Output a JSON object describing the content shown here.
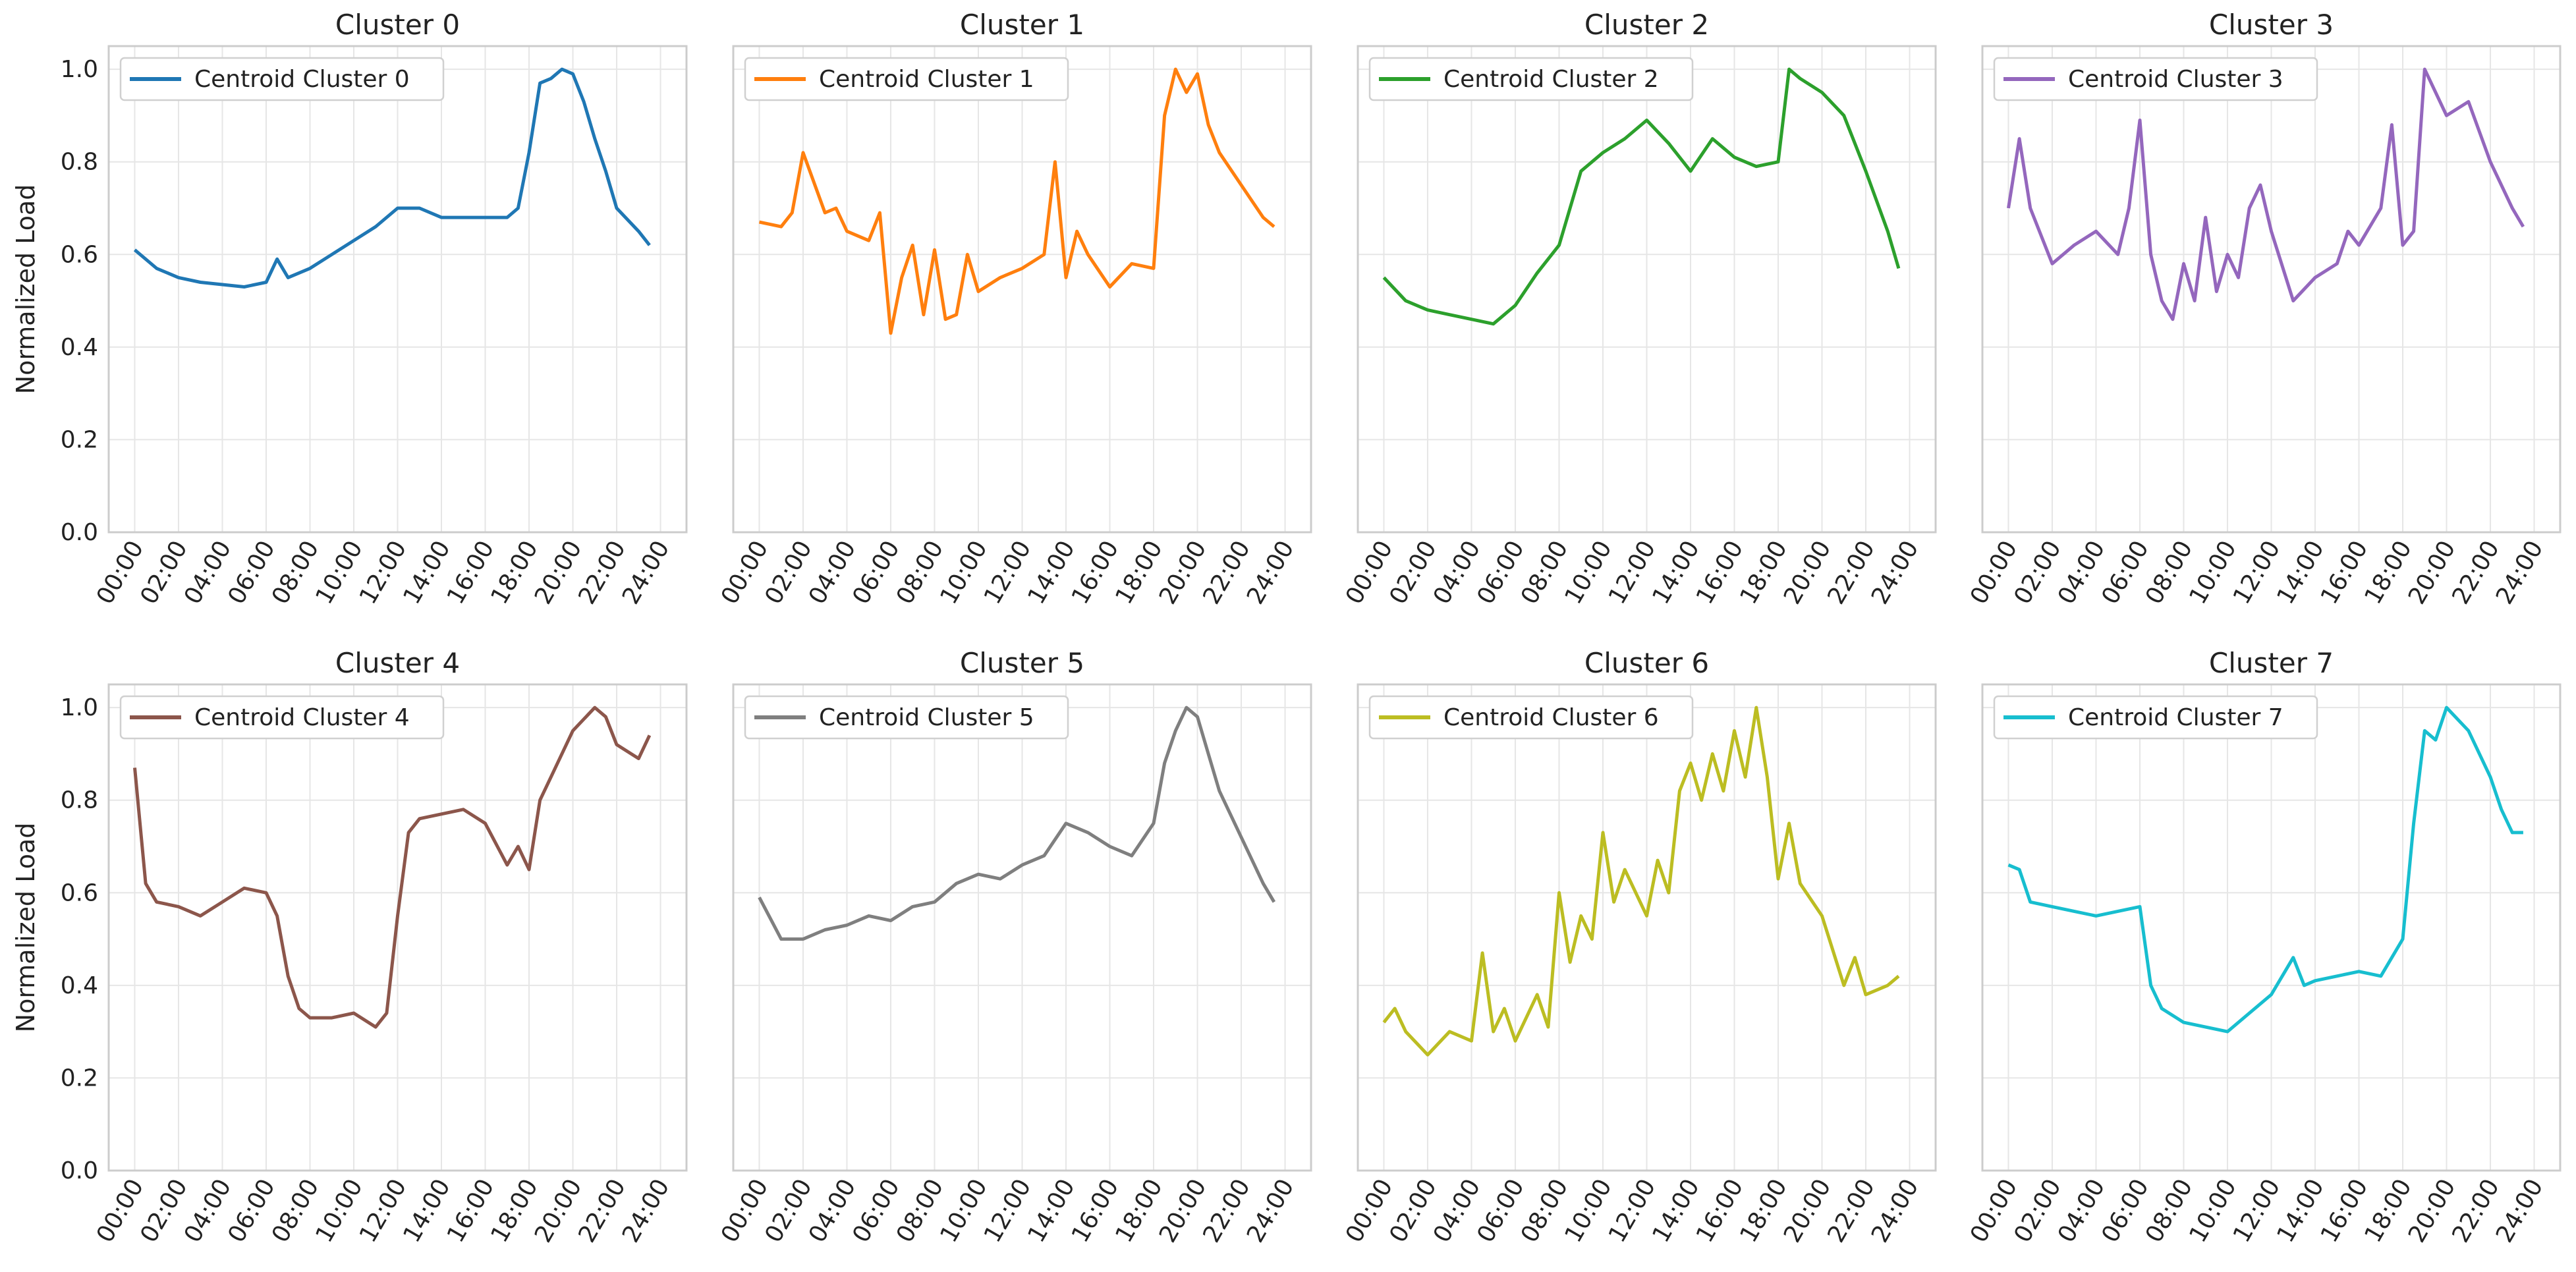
{
  "chart_data": [
    {
      "type": "line",
      "title": "Cluster 0",
      "legend": "Centroid Cluster 0",
      "color": "#1f77b4",
      "ylabel": "Normalized Load",
      "ylim": [
        0,
        1.05
      ],
      "x": [
        "00:00",
        "01:00",
        "02:00",
        "03:00",
        "04:00",
        "05:00",
        "06:00",
        "06:30",
        "07:00",
        "08:00",
        "09:00",
        "10:00",
        "11:00",
        "12:00",
        "13:00",
        "14:00",
        "15:00",
        "16:00",
        "17:00",
        "17:30",
        "18:00",
        "18:30",
        "19:00",
        "19:30",
        "20:00",
        "20:30",
        "21:00",
        "21:30",
        "22:00",
        "23:00",
        "23:30"
      ],
      "y": [
        0.61,
        0.57,
        0.55,
        0.54,
        0.535,
        0.53,
        0.54,
        0.59,
        0.55,
        0.57,
        0.6,
        0.63,
        0.66,
        0.7,
        0.7,
        0.68,
        0.68,
        0.68,
        0.68,
        0.7,
        0.82,
        0.97,
        0.98,
        1.0,
        0.99,
        0.93,
        0.85,
        0.78,
        0.7,
        0.65,
        0.62
      ]
    },
    {
      "type": "line",
      "title": "Cluster 1",
      "legend": "Centroid Cluster 1",
      "color": "#ff7f0e",
      "ylim": [
        0,
        1.05
      ],
      "x": [
        "00:00",
        "01:00",
        "01:30",
        "02:00",
        "03:00",
        "03:30",
        "04:00",
        "05:00",
        "05:30",
        "06:00",
        "06:30",
        "07:00",
        "07:30",
        "08:00",
        "08:30",
        "09:00",
        "09:30",
        "10:00",
        "11:00",
        "12:00",
        "13:00",
        "13:30",
        "14:00",
        "14:30",
        "15:00",
        "16:00",
        "17:00",
        "18:00",
        "18:30",
        "19:00",
        "19:30",
        "20:00",
        "20:30",
        "21:00",
        "22:00",
        "23:00",
        "23:30"
      ],
      "y": [
        0.67,
        0.66,
        0.69,
        0.82,
        0.69,
        0.7,
        0.65,
        0.63,
        0.69,
        0.43,
        0.55,
        0.62,
        0.47,
        0.61,
        0.46,
        0.47,
        0.6,
        0.52,
        0.55,
        0.57,
        0.6,
        0.8,
        0.55,
        0.65,
        0.6,
        0.53,
        0.58,
        0.57,
        0.9,
        1.0,
        0.95,
        0.99,
        0.88,
        0.82,
        0.75,
        0.68,
        0.66
      ]
    },
    {
      "type": "line",
      "title": "Cluster 2",
      "legend": "Centroid Cluster 2",
      "color": "#2ca02c",
      "ylim": [
        0,
        1.05
      ],
      "x": [
        "00:00",
        "01:00",
        "02:00",
        "03:00",
        "04:00",
        "05:00",
        "06:00",
        "07:00",
        "08:00",
        "09:00",
        "10:00",
        "11:00",
        "12:00",
        "13:00",
        "14:00",
        "15:00",
        "16:00",
        "17:00",
        "18:00",
        "18:30",
        "19:00",
        "20:00",
        "21:00",
        "22:00",
        "23:00",
        "23:30"
      ],
      "y": [
        0.55,
        0.5,
        0.48,
        0.47,
        0.46,
        0.45,
        0.49,
        0.56,
        0.62,
        0.78,
        0.82,
        0.85,
        0.89,
        0.84,
        0.78,
        0.85,
        0.81,
        0.79,
        0.8,
        1.0,
        0.98,
        0.95,
        0.9,
        0.78,
        0.65,
        0.57
      ]
    },
    {
      "type": "line",
      "title": "Cluster 3",
      "legend": "Centroid Cluster 3",
      "color": "#9467bd",
      "ylim": [
        0,
        1.05
      ],
      "x": [
        "00:00",
        "00:30",
        "01:00",
        "02:00",
        "03:00",
        "04:00",
        "05:00",
        "05:30",
        "06:00",
        "06:30",
        "07:00",
        "07:30",
        "08:00",
        "08:30",
        "09:00",
        "09:30",
        "10:00",
        "10:30",
        "11:00",
        "11:30",
        "12:00",
        "13:00",
        "14:00",
        "15:00",
        "15:30",
        "16:00",
        "17:00",
        "17:30",
        "18:00",
        "18:30",
        "19:00",
        "20:00",
        "21:00",
        "22:00",
        "23:00",
        "23:30"
      ],
      "y": [
        0.7,
        0.85,
        0.7,
        0.58,
        0.62,
        0.65,
        0.6,
        0.7,
        0.89,
        0.6,
        0.5,
        0.46,
        0.58,
        0.5,
        0.68,
        0.52,
        0.6,
        0.55,
        0.7,
        0.75,
        0.65,
        0.5,
        0.55,
        0.58,
        0.65,
        0.62,
        0.7,
        0.88,
        0.62,
        0.65,
        1.0,
        0.9,
        0.93,
        0.8,
        0.7,
        0.66
      ]
    },
    {
      "type": "line",
      "title": "Cluster 4",
      "legend": "Centroid Cluster 4",
      "color": "#8c564b",
      "ylim": [
        0,
        1.05
      ],
      "x": [
        "00:00",
        "00:30",
        "01:00",
        "02:00",
        "03:00",
        "04:00",
        "05:00",
        "06:00",
        "06:30",
        "07:00",
        "07:30",
        "08:00",
        "09:00",
        "10:00",
        "11:00",
        "11:30",
        "12:00",
        "12:30",
        "13:00",
        "14:00",
        "15:00",
        "16:00",
        "17:00",
        "17:30",
        "18:00",
        "18:30",
        "19:00",
        "20:00",
        "21:00",
        "21:30",
        "22:00",
        "23:00",
        "23:30"
      ],
      "y": [
        0.87,
        0.62,
        0.58,
        0.57,
        0.55,
        0.58,
        0.61,
        0.6,
        0.55,
        0.42,
        0.35,
        0.33,
        0.33,
        0.34,
        0.31,
        0.34,
        0.55,
        0.73,
        0.76,
        0.77,
        0.78,
        0.75,
        0.66,
        0.7,
        0.65,
        0.8,
        0.85,
        0.95,
        1.0,
        0.98,
        0.92,
        0.89,
        0.94
      ]
    },
    {
      "type": "line",
      "title": "Cluster 5",
      "legend": "Centroid Cluster 5",
      "color": "#7f7f7f",
      "ylim": [
        0,
        1.05
      ],
      "x": [
        "00:00",
        "01:00",
        "02:00",
        "03:00",
        "04:00",
        "05:00",
        "06:00",
        "07:00",
        "08:00",
        "09:00",
        "10:00",
        "11:00",
        "12:00",
        "13:00",
        "14:00",
        "15:00",
        "16:00",
        "17:00",
        "18:00",
        "18:30",
        "19:00",
        "19:30",
        "20:00",
        "20:30",
        "21:00",
        "22:00",
        "23:00",
        "23:30"
      ],
      "y": [
        0.59,
        0.5,
        0.5,
        0.52,
        0.53,
        0.55,
        0.54,
        0.57,
        0.58,
        0.62,
        0.64,
        0.63,
        0.66,
        0.68,
        0.75,
        0.73,
        0.7,
        0.68,
        0.75,
        0.88,
        0.95,
        1.0,
        0.98,
        0.9,
        0.82,
        0.72,
        0.62,
        0.58
      ]
    },
    {
      "type": "line",
      "title": "Cluster 6",
      "legend": "Centroid Cluster 6",
      "color": "#bcbd22",
      "ylim": [
        0,
        1.05
      ],
      "x": [
        "00:00",
        "00:30",
        "01:00",
        "02:00",
        "03:00",
        "04:00",
        "04:30",
        "05:00",
        "05:30",
        "06:00",
        "07:00",
        "07:30",
        "08:00",
        "08:30",
        "09:00",
        "09:30",
        "10:00",
        "10:30",
        "11:00",
        "12:00",
        "12:30",
        "13:00",
        "13:30",
        "14:00",
        "14:30",
        "15:00",
        "15:30",
        "16:00",
        "16:30",
        "17:00",
        "17:30",
        "18:00",
        "18:30",
        "19:00",
        "20:00",
        "21:00",
        "21:30",
        "22:00",
        "23:00",
        "23:30"
      ],
      "y": [
        0.32,
        0.35,
        0.3,
        0.25,
        0.3,
        0.28,
        0.47,
        0.3,
        0.35,
        0.28,
        0.38,
        0.31,
        0.6,
        0.45,
        0.55,
        0.5,
        0.73,
        0.58,
        0.65,
        0.55,
        0.67,
        0.6,
        0.82,
        0.88,
        0.8,
        0.9,
        0.82,
        0.95,
        0.85,
        1.0,
        0.85,
        0.63,
        0.75,
        0.62,
        0.55,
        0.4,
        0.46,
        0.38,
        0.4,
        0.42
      ]
    },
    {
      "type": "line",
      "title": "Cluster 7",
      "legend": "Centroid Cluster 7",
      "color": "#17becf",
      "ylim": [
        0,
        1.05
      ],
      "x": [
        "00:00",
        "00:30",
        "01:00",
        "02:00",
        "03:00",
        "04:00",
        "05:00",
        "06:00",
        "06:30",
        "07:00",
        "08:00",
        "09:00",
        "10:00",
        "11:00",
        "12:00",
        "13:00",
        "13:30",
        "14:00",
        "15:00",
        "16:00",
        "17:00",
        "18:00",
        "18:30",
        "19:00",
        "19:30",
        "20:00",
        "21:00",
        "22:00",
        "22:30",
        "23:00",
        "23:30"
      ],
      "y": [
        0.66,
        0.65,
        0.58,
        0.57,
        0.56,
        0.55,
        0.56,
        0.57,
        0.4,
        0.35,
        0.32,
        0.31,
        0.3,
        0.34,
        0.38,
        0.46,
        0.4,
        0.41,
        0.42,
        0.43,
        0.42,
        0.5,
        0.75,
        0.95,
        0.93,
        1.0,
        0.95,
        0.85,
        0.78,
        0.73,
        0.73
      ]
    }
  ],
  "axes": {
    "ylabel": "Normalized Load",
    "yticks": [
      "0.0",
      "0.2",
      "0.4",
      "0.6",
      "0.8",
      "1.0"
    ],
    "xticks": [
      "00:00",
      "02:00",
      "04:00",
      "06:00",
      "08:00",
      "10:00",
      "12:00",
      "14:00",
      "16:00",
      "18:00",
      "20:00",
      "22:00",
      "24:00"
    ]
  }
}
